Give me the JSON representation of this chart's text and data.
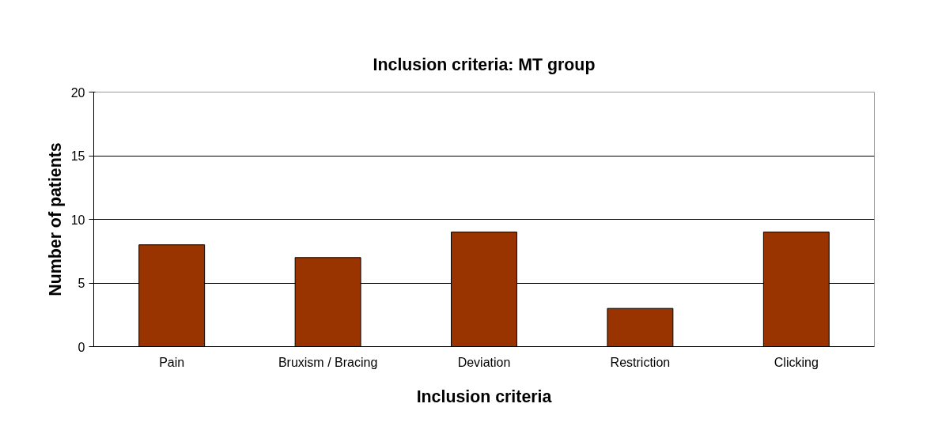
{
  "chart_data": {
    "type": "bar",
    "title": "Inclusion criteria: MT group",
    "xlabel": "Inclusion criteria",
    "ylabel": "Number of patients",
    "categories": [
      "Pain",
      "Bruxism / Bracing",
      "Deviation",
      "Restriction",
      "Clicking"
    ],
    "values": [
      8,
      7,
      9,
      3,
      9
    ],
    "color": "#993300",
    "ylim": [
      0,
      20
    ],
    "yticks": [
      0,
      5,
      10,
      15,
      20
    ],
    "grid": "y"
  }
}
